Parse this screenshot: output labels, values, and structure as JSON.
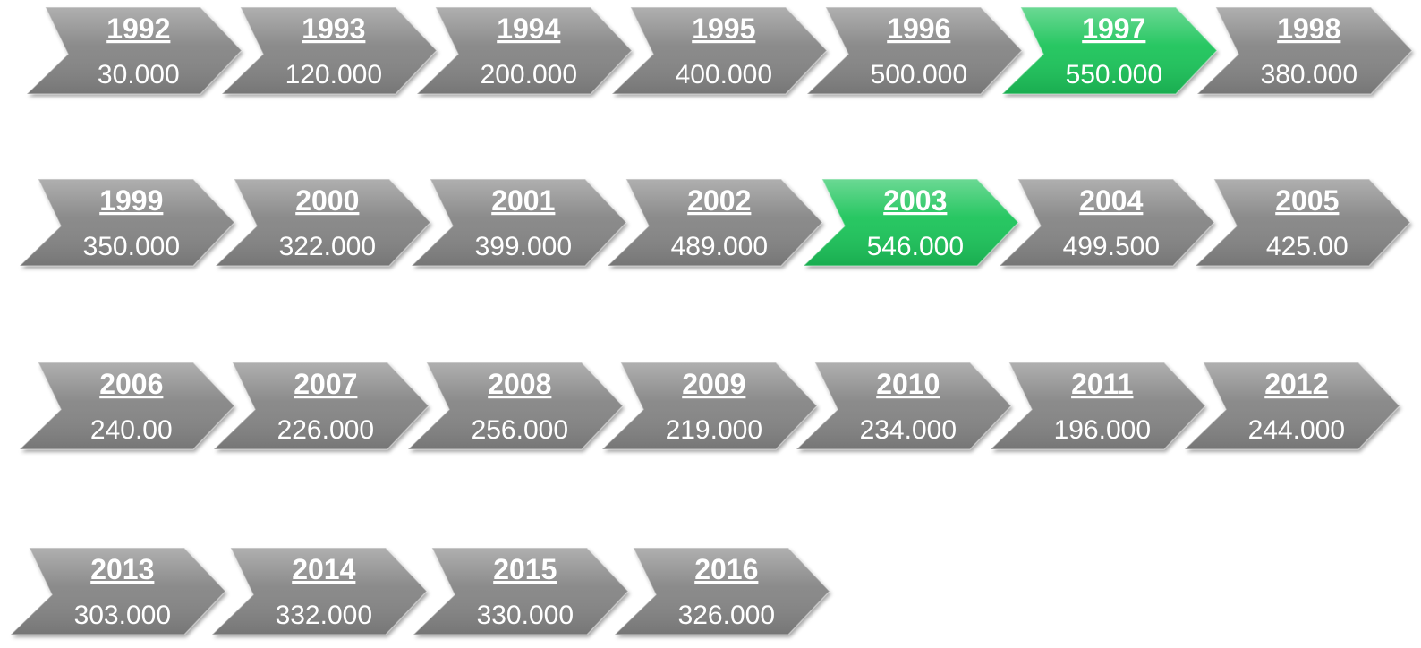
{
  "rows": [
    {
      "items": [
        {
          "year": "1992",
          "value": "30.000",
          "color": "#858585"
        },
        {
          "year": "1993",
          "value": "120.000",
          "color": "#858585"
        },
        {
          "year": "1994",
          "value": "200.000",
          "color": "#858585"
        },
        {
          "year": "1995",
          "value": "400.000",
          "color": "#858585"
        },
        {
          "year": "1996",
          "value": "500.000",
          "color": "#858585"
        },
        {
          "year": "1997",
          "value": "550.000",
          "color": "#1ec45a"
        },
        {
          "year": "1998",
          "value": "380.000",
          "color": "#858585"
        }
      ]
    },
    {
      "items": [
        {
          "year": "1999",
          "value": "350.000",
          "color": "#858585"
        },
        {
          "year": "2000",
          "value": "322.000",
          "color": "#858585"
        },
        {
          "year": "2001",
          "value": "399.000",
          "color": "#858585"
        },
        {
          "year": "2002",
          "value": "489.000",
          "color": "#858585"
        },
        {
          "year": "2003",
          "value": "546.000",
          "color": "#1ec45a"
        },
        {
          "year": "2004",
          "value": "499.500",
          "color": "#858585"
        },
        {
          "year": "2005",
          "value": "425.00",
          "color": "#858585"
        }
      ]
    },
    {
      "items": [
        {
          "year": "2006",
          "value": "240.00",
          "color": "#858585"
        },
        {
          "year": "2007",
          "value": "226.000",
          "color": "#858585"
        },
        {
          "year": "2008",
          "value": "256.000",
          "color": "#858585"
        },
        {
          "year": "2009",
          "value": "219.000",
          "color": "#858585"
        },
        {
          "year": "2010",
          "value": "234.000",
          "color": "#858585"
        },
        {
          "year": "2011",
          "value": "196.000",
          "color": "#858585"
        },
        {
          "year": "2012",
          "value": "244.000",
          "color": "#858585"
        }
      ]
    },
    {
      "items": [
        {
          "year": "2013",
          "value": "303.000",
          "color": "#858585"
        },
        {
          "year": "2014",
          "value": "332.000",
          "color": "#858585"
        },
        {
          "year": "2015",
          "value": "330.000",
          "color": "#858585"
        },
        {
          "year": "2016",
          "value": "326.000",
          "color": "#858585"
        }
      ]
    }
  ]
}
